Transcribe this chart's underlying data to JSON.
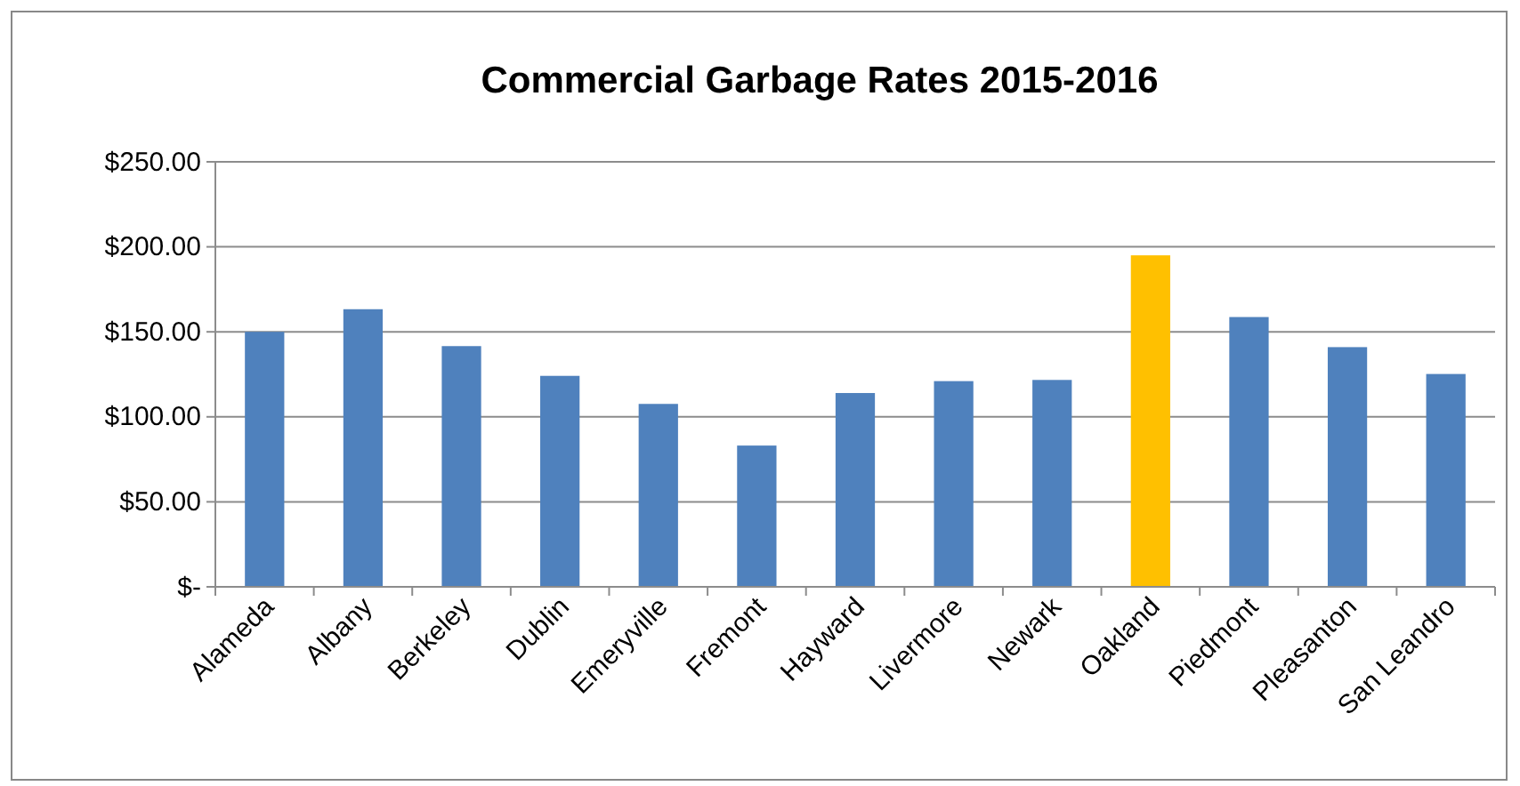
{
  "chart_data": {
    "type": "bar",
    "title": "Commercial Garbage Rates 2015-2016",
    "categories": [
      "Alameda",
      "Albany",
      "Berkeley",
      "Dublin",
      "Emeryville",
      "Fremont",
      "Hayward",
      "Livermore",
      "Newark",
      "Oakland",
      "Piedmont",
      "Pleasanton",
      "San Leandro"
    ],
    "values": [
      150,
      163.3,
      141.6,
      124.1,
      107.6,
      83.1,
      114,
      121,
      121.7,
      195,
      158.7,
      141,
      125.2
    ],
    "colors": [
      "#4f81bd",
      "#4f81bd",
      "#4f81bd",
      "#4f81bd",
      "#4f81bd",
      "#4f81bd",
      "#4f81bd",
      "#4f81bd",
      "#4f81bd",
      "#ffc000",
      "#4f81bd",
      "#4f81bd",
      "#4f81bd"
    ],
    "ylim": [
      0,
      250
    ],
    "yticks": [
      {
        "value": 0,
        "label": "$-"
      },
      {
        "value": 50,
        "label": "$50.00"
      },
      {
        "value": 100,
        "label": "$100.00"
      },
      {
        "value": 150,
        "label": "$150.00"
      },
      {
        "value": 200,
        "label": "$200.00"
      },
      {
        "value": 250,
        "label": "$250.00"
      }
    ],
    "grid": "y"
  }
}
